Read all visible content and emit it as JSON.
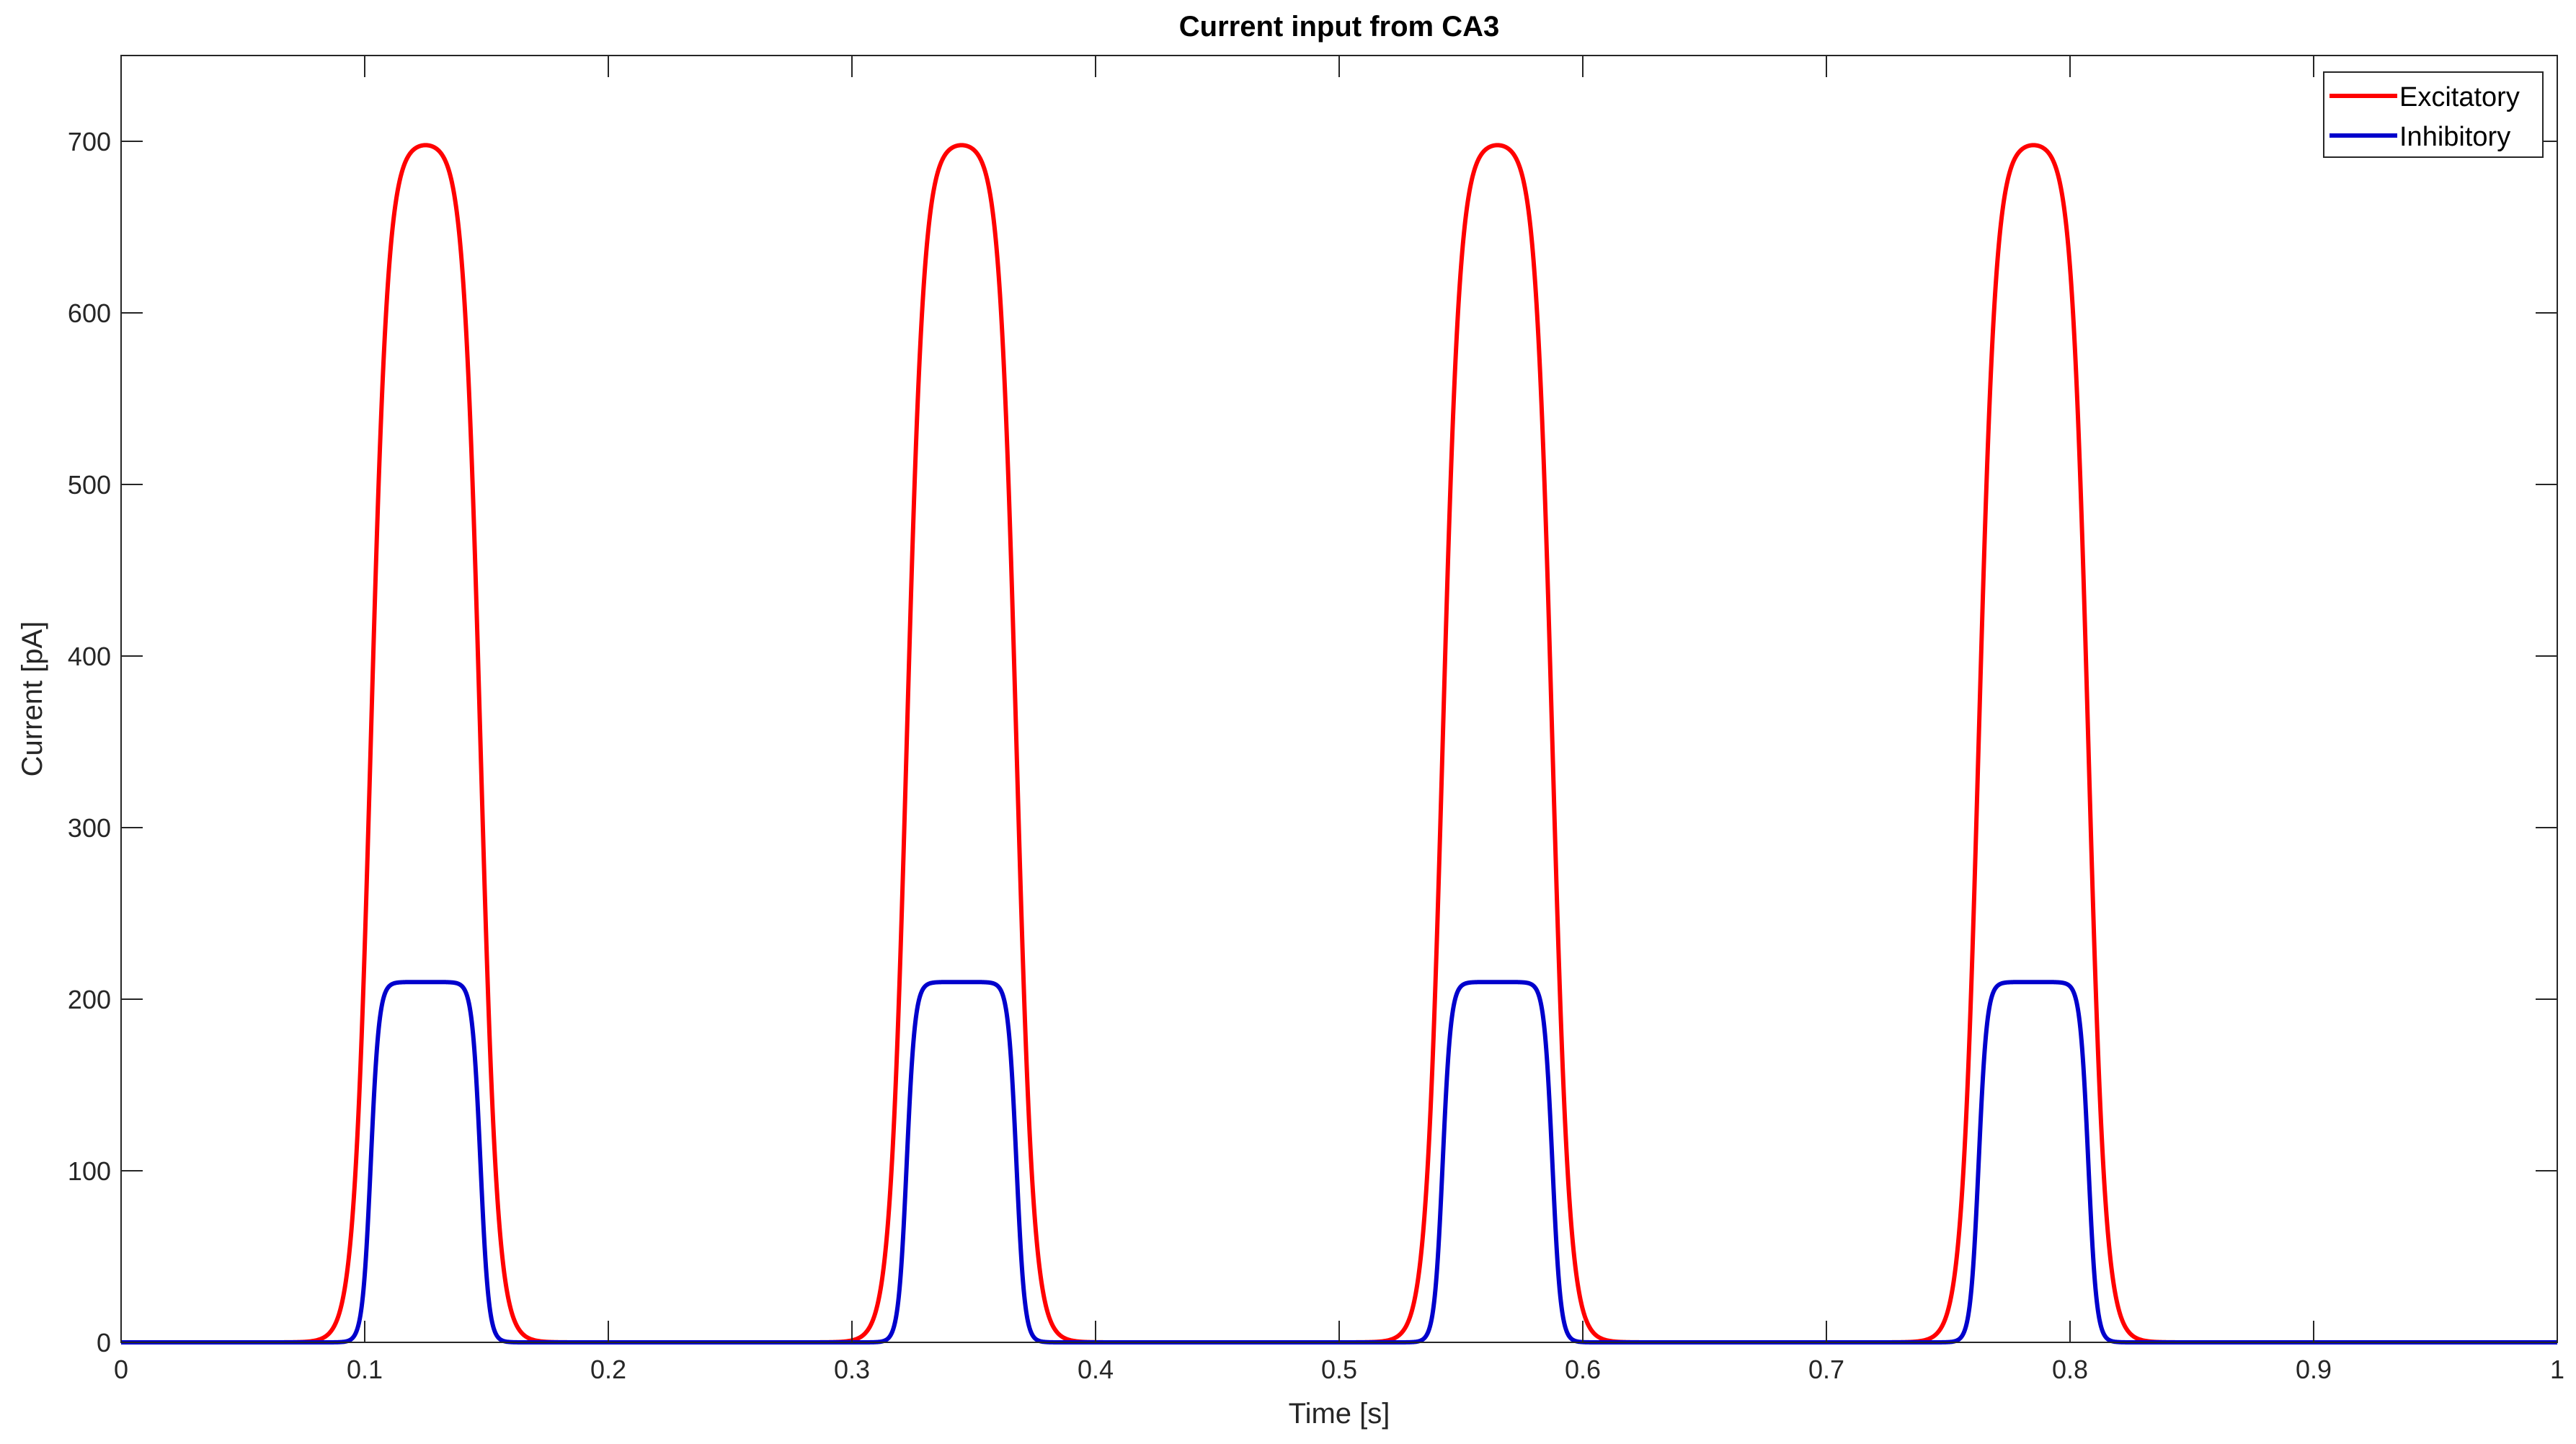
{
  "chart_data": {
    "type": "line",
    "title": "Current input from CA3",
    "xlabel": "Time [s]",
    "ylabel": "Current [pA]",
    "xlim": [
      0,
      1
    ],
    "ylim": [
      0,
      750
    ],
    "xticks": [
      "0",
      "0.1",
      "0.2",
      "0.3",
      "0.4",
      "0.5",
      "0.6",
      "0.7",
      "0.8",
      "0.9",
      "1"
    ],
    "xtick_values": [
      0,
      0.1,
      0.2,
      0.3,
      0.4,
      0.5,
      0.6,
      0.7,
      0.8,
      0.9,
      1
    ],
    "yticks": [
      "0",
      "100",
      "200",
      "300",
      "400",
      "500",
      "600",
      "700"
    ],
    "ytick_values": [
      0,
      100,
      200,
      300,
      400,
      500,
      600,
      700
    ],
    "grid": false,
    "box": true,
    "legend_position": "top-right",
    "series": [
      {
        "name": "Excitatory",
        "color": "#ff0000",
        "pulses": [
          {
            "center": 0.125,
            "peak": 700
          },
          {
            "center": 0.345,
            "peak": 700
          },
          {
            "center": 0.565,
            "peak": 700
          },
          {
            "center": 0.785,
            "peak": 700
          }
        ],
        "rise_half_point_offset": 0.0225,
        "edge_width": 0.0035
      },
      {
        "name": "Inhibitory",
        "color": "#0000cc",
        "pulses": [
          {
            "center": 0.125,
            "peak": 210
          },
          {
            "center": 0.345,
            "peak": 210
          },
          {
            "center": 0.565,
            "peak": 210
          },
          {
            "center": 0.785,
            "peak": 210
          }
        ],
        "rise_half_point_offset": 0.0225,
        "edge_width": 0.0017
      }
    ]
  }
}
